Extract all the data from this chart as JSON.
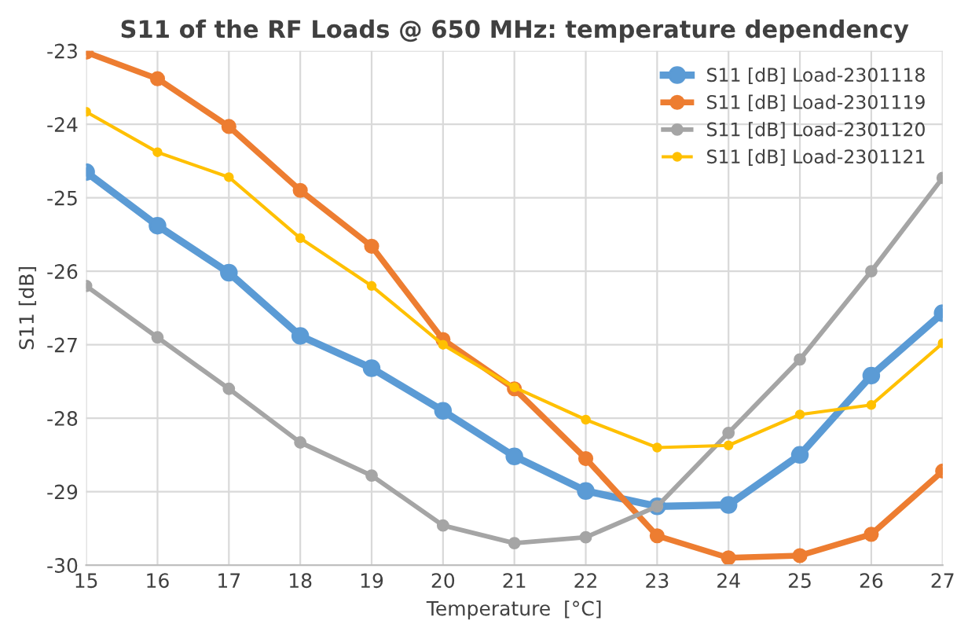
{
  "chart_data": {
    "type": "line",
    "title": "S11 of the RF Loads @ 650 MHz: temperature dependency",
    "xlabel": "Temperature  [°C]",
    "ylabel": "S11 [dB]",
    "x": [
      15,
      16,
      17,
      18,
      19,
      20,
      21,
      22,
      23,
      24,
      25,
      26,
      27
    ],
    "series": [
      {
        "name": "S11 [dB] Load-2301118",
        "color": "#5b9bd5",
        "values": [
          -24.65,
          -25.38,
          -26.02,
          -26.88,
          -27.32,
          -27.9,
          -28.52,
          -28.99,
          -29.2,
          -29.18,
          -28.5,
          -27.42,
          -26.57
        ]
      },
      {
        "name": "S11 [dB] Load-2301119",
        "color": "#ed7d31",
        "values": [
          -23.02,
          -23.38,
          -24.03,
          -24.9,
          -25.66,
          -26.93,
          -27.6,
          -28.55,
          -29.6,
          -29.9,
          -29.87,
          -29.58,
          -28.72
        ]
      },
      {
        "name": "S11 [dB] Load-2301120",
        "color": "#a5a5a5",
        "values": [
          -26.2,
          -26.9,
          -27.6,
          -28.33,
          -28.78,
          -29.46,
          -29.7,
          -29.62,
          -29.2,
          -28.2,
          -27.2,
          -26.0,
          -24.73
        ]
      },
      {
        "name": "S11 [dB] Load-2301121",
        "color": "#ffc000",
        "values": [
          -23.83,
          -24.38,
          -24.72,
          -25.55,
          -26.2,
          -27.0,
          -27.58,
          -28.02,
          -28.4,
          -28.37,
          -27.95,
          -27.82,
          -26.98
        ]
      }
    ],
    "xlim": [
      15,
      27
    ],
    "xticks": [
      15,
      16,
      17,
      18,
      19,
      20,
      21,
      22,
      23,
      24,
      25,
      26,
      27
    ],
    "ylim": [
      -30,
      -23
    ],
    "yticks": [
      -30,
      -29,
      -28,
      -27,
      -26,
      -25,
      -24,
      -23
    ],
    "grid": true,
    "legend": "top right",
    "marker": "circle",
    "line_style": "solid"
  }
}
